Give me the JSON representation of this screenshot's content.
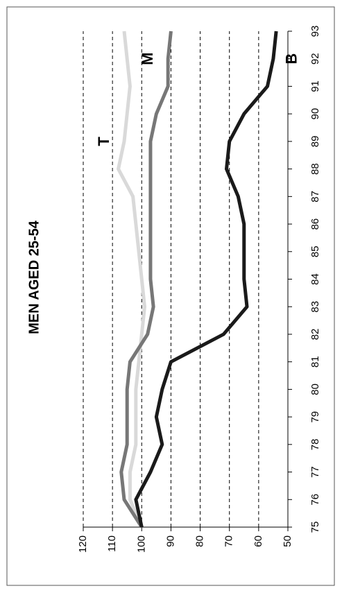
{
  "chart_data": {
    "type": "line",
    "title": "MEN AGED 25-54",
    "x": [
      75,
      76,
      77,
      78,
      79,
      80,
      81,
      82,
      83,
      84,
      85,
      86,
      87,
      88,
      89,
      90,
      91,
      92,
      93
    ],
    "xlim": [
      75,
      93
    ],
    "xticks": [
      75,
      76,
      77,
      78,
      79,
      80,
      81,
      82,
      83,
      84,
      85,
      86,
      87,
      88,
      89,
      90,
      91,
      92,
      93
    ],
    "ylim": [
      50,
      120
    ],
    "yticks": [
      50,
      60,
      70,
      80,
      90,
      100,
      110,
      120
    ],
    "grid": true,
    "series": [
      {
        "name": "T",
        "color": "#d9d9d9",
        "values": [
          100,
          104,
          104,
          102,
          102,
          102,
          101,
          100,
          99,
          100,
          101,
          102,
          103,
          108,
          106,
          105,
          104,
          105,
          106
        ]
      },
      {
        "name": "M",
        "color": "#777777",
        "values": [
          100,
          106,
          107,
          105,
          105,
          105,
          104,
          98,
          96,
          97,
          97,
          97,
          97,
          97,
          97,
          95,
          91,
          91,
          90
        ]
      },
      {
        "name": "B",
        "color": "#1a1a1a",
        "values": [
          100,
          102,
          97,
          93,
          95,
          93,
          90,
          72,
          64,
          65,
          65,
          65,
          67,
          71,
          70,
          65,
          57,
          55,
          54
        ]
      }
    ]
  }
}
